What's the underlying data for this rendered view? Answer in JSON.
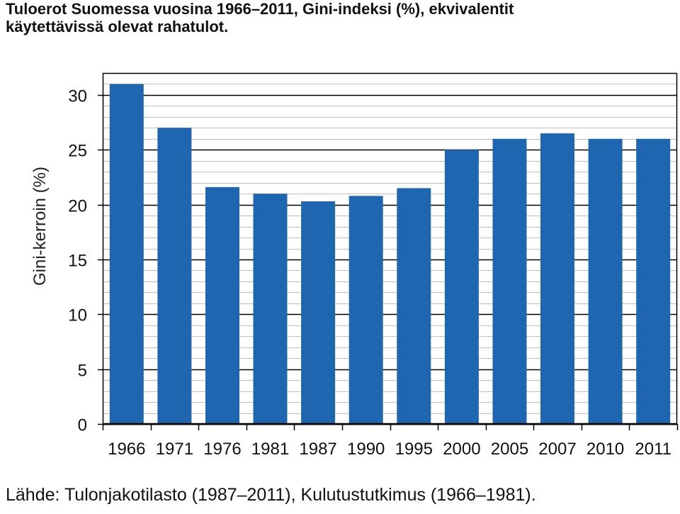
{
  "title": {
    "line1": "Tuloerot Suomessa vuosina 1966–2011, Gini-indeksi (%), ekvivalentit",
    "line2": "käytettävissä olevat rahatulot."
  },
  "source": "Lähde: Tulonjakotilasto (1987–2011), Kulutustutkimus (1966–1981).",
  "colors": {
    "bar": "#1f66b0",
    "plot_background": "#ffffff",
    "major_grid": "#000000",
    "minor_grid": "#bfbfbf",
    "axis": "#000000"
  },
  "chart_data": {
    "type": "bar",
    "title": "Tuloerot Suomessa vuosina 1966–2011, Gini-indeksi (%), ekvivalentit käytettävissä olevat rahatulot.",
    "xlabel": "",
    "ylabel": "Gini-kerroin  (%)",
    "categories": [
      "1966",
      "1971",
      "1976",
      "1981",
      "1987",
      "1990",
      "1995",
      "2000",
      "2005",
      "2007",
      "2010",
      "2011"
    ],
    "values": [
      31.0,
      27.0,
      21.6,
      21.0,
      20.3,
      20.8,
      21.5,
      25.0,
      26.0,
      26.5,
      26.0,
      26.0
    ],
    "ylim": [
      0,
      32
    ],
    "yticks": [
      0,
      5,
      10,
      15,
      20,
      25,
      30
    ],
    "grid": true,
    "legend": "none"
  }
}
